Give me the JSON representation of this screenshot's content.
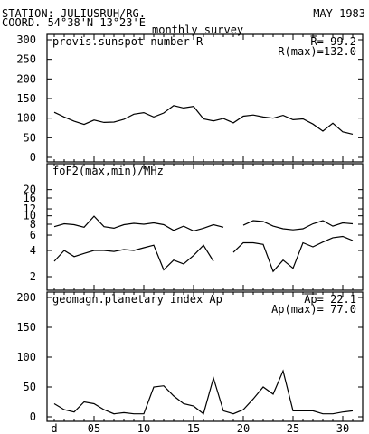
{
  "header": {
    "station": "STATION: JULIUSRUH/RG.",
    "coord": "COORD. 54°38'N 13°23'E",
    "date": "MAY 1983",
    "subtitle": "monthly survey"
  },
  "chart_data": [
    {
      "type": "line",
      "title": "provis.sunspot number R",
      "stats": [
        "R= 99.2",
        "R(max)=132.0"
      ],
      "overline_stat_prefix": "R",
      "xlim": [
        1,
        31
      ],
      "ylim": [
        0,
        300
      ],
      "yticks": [
        0,
        50,
        100,
        150,
        200,
        250,
        300
      ],
      "series": [
        {
          "x": [
            1,
            2,
            3,
            4,
            5,
            6,
            7,
            8,
            9,
            10,
            11,
            12,
            13,
            14,
            15,
            16,
            17,
            18,
            19,
            20,
            21,
            22,
            23,
            24,
            25,
            26,
            27,
            28,
            29,
            30,
            31
          ],
          "values": [
            115,
            103,
            92,
            84,
            95,
            89,
            90,
            97,
            110,
            114,
            103,
            113,
            132,
            126,
            130,
            98,
            93,
            99,
            88,
            105,
            108,
            103,
            100,
            107,
            96,
            98,
            85,
            67,
            87,
            65,
            59
          ]
        }
      ]
    },
    {
      "type": "line",
      "title": "foF2(max,min)/MHz",
      "xlim": [
        1,
        31
      ],
      "ylim": [
        0,
        20
      ],
      "yticks": [
        2,
        4,
        6,
        8,
        10,
        12,
        16,
        20
      ],
      "ytick_labels": [
        "2",
        "4",
        "6",
        "8",
        "10",
        "12",
        "16",
        "20"
      ],
      "scale": "log",
      "series": [
        {
          "x": [
            1,
            2,
            3,
            4,
            5,
            6,
            7,
            8,
            9,
            10,
            11,
            12,
            13,
            14,
            15,
            16,
            17,
            18,
            19,
            20,
            21,
            22,
            23,
            24,
            25,
            26,
            27,
            28,
            29,
            30,
            31
          ],
          "values": [
            7.5,
            8.1,
            7.9,
            7.4,
            9.9,
            7.5,
            7.2,
            7.9,
            8.2,
            8.0,
            8.3,
            7.9,
            6.8,
            7.6,
            6.7,
            7.2,
            7.9,
            7.4,
            null,
            7.8,
            8.8,
            8.6,
            7.6,
            7.1,
            6.9,
            7.1,
            8.1,
            8.8,
            7.6,
            8.3,
            8.1
          ]
        },
        {
          "x": [
            1,
            2,
            3,
            4,
            5,
            6,
            7,
            8,
            9,
            10,
            11,
            12,
            13,
            14,
            15,
            16,
            17,
            18,
            19,
            20,
            21,
            22,
            23,
            24,
            25,
            26,
            27,
            28,
            29,
            30,
            31
          ],
          "values": [
            3.0,
            4.0,
            3.4,
            3.7,
            4.0,
            4.0,
            3.9,
            4.1,
            4.0,
            4.3,
            4.6,
            2.4,
            3.1,
            2.8,
            3.5,
            4.6,
            3.0,
            null,
            3.8,
            4.9,
            4.9,
            4.7,
            2.3,
            3.1,
            2.5,
            4.9,
            4.4,
            5.0,
            5.6,
            5.8,
            5.2
          ]
        }
      ]
    },
    {
      "type": "line",
      "title": "geomagn.planetary index Ap",
      "stats": [
        "Ap= 22.1",
        "Ap(max)= 77.0"
      ],
      "overline_stat_prefix": "Ap",
      "xlim": [
        1,
        31
      ],
      "ylim": [
        0,
        200
      ],
      "yticks": [
        0,
        50,
        100,
        150,
        200
      ],
      "xticks": [
        1,
        5,
        10,
        15,
        20,
        25,
        30
      ],
      "xtick_labels": [
        "d",
        "05",
        "10",
        "15",
        "20",
        "25",
        "30"
      ],
      "series": [
        {
          "x": [
            1,
            2,
            3,
            4,
            5,
            6,
            7,
            8,
            9,
            10,
            11,
            12,
            13,
            14,
            15,
            16,
            17,
            18,
            19,
            20,
            21,
            22,
            23,
            24,
            25,
            26,
            27,
            28,
            29,
            30,
            31
          ],
          "values": [
            22,
            12,
            8,
            25,
            22,
            12,
            5,
            7,
            5,
            5,
            50,
            52,
            35,
            22,
            18,
            5,
            65,
            10,
            5,
            12,
            30,
            50,
            38,
            77,
            10,
            10,
            10,
            5,
            5,
            8,
            10
          ]
        }
      ]
    }
  ]
}
